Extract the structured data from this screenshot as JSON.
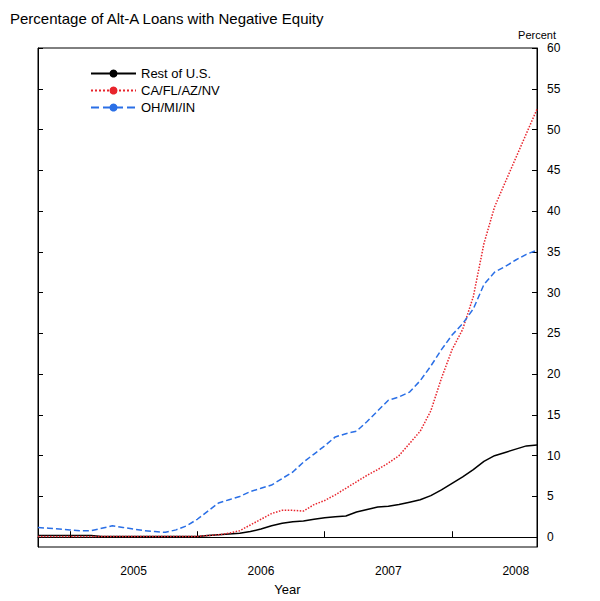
{
  "chart_data": {
    "type": "line",
    "title": "Percentage of Alt-A Loans with Negative Equity",
    "x_label": "Year",
    "y_label": "Percent",
    "categories": [
      null,
      null,
      null,
      null,
      null,
      null,
      null,
      null,
      null,
      "2005",
      null,
      null,
      null,
      null,
      null,
      null,
      null,
      null,
      null,
      null,
      null,
      "2006",
      null,
      null,
      null,
      null,
      null,
      null,
      null,
      null,
      null,
      null,
      null,
      "2007",
      null,
      null,
      null,
      null,
      null,
      null,
      null,
      null,
      null,
      null,
      null,
      "2008",
      null,
      null
    ],
    "series": [
      {
        "name": "Rest of U.S.",
        "color": "#000000",
        "line_style": "solid",
        "values": [
          0.2,
          0.2,
          0.2,
          0.2,
          0.2,
          0.2,
          0.1,
          0.1,
          0.1,
          0.1,
          0.1,
          0.1,
          0.1,
          0.1,
          0.1,
          0.1,
          0.2,
          0.3,
          0.4,
          0.5,
          0.7,
          1.0,
          1.4,
          1.7,
          1.9,
          2.0,
          2.2,
          2.4,
          2.5,
          2.6,
          3.1,
          3.4,
          3.7,
          3.8,
          4.0,
          4.3,
          4.6,
          5.1,
          5.8,
          6.6,
          7.4,
          8.3,
          9.3,
          10.0,
          10.4,
          10.8,
          11.2,
          11.3
        ]
      },
      {
        "name": "CA/FL/AZ/NV",
        "color": "#e8242c",
        "line_style": "dotted",
        "values": [
          0.1,
          0.1,
          0.1,
          0.1,
          0.1,
          0.1,
          0.1,
          0.1,
          0.1,
          0.1,
          0.1,
          0.1,
          0.1,
          0.1,
          0.1,
          0.1,
          0.2,
          0.3,
          0.5,
          0.8,
          1.5,
          2.2,
          2.9,
          3.3,
          3.3,
          3.2,
          4.0,
          4.5,
          5.2,
          6.0,
          6.8,
          7.6,
          8.3,
          9.1,
          10.0,
          11.5,
          13.0,
          15.5,
          19.5,
          23.0,
          25.5,
          29.5,
          36.0,
          40.5,
          43.5,
          46.5,
          49.5,
          52.5
        ]
      },
      {
        "name": "OH/MI/IN",
        "color": "#2a6fe6",
        "line_style": "dashed",
        "values": [
          1.2,
          1.1,
          1.0,
          0.9,
          0.8,
          0.8,
          1.1,
          1.4,
          1.2,
          1.0,
          0.8,
          0.7,
          0.6,
          0.9,
          1.4,
          2.2,
          3.2,
          4.2,
          4.6,
          5.0,
          5.6,
          6.0,
          6.4,
          7.2,
          8.0,
          9.2,
          10.2,
          11.2,
          12.3,
          12.7,
          13.0,
          14.2,
          15.5,
          16.8,
          17.2,
          17.8,
          19.2,
          21.0,
          23.0,
          24.8,
          26.2,
          28.0,
          31.0,
          32.5,
          33.2,
          34.0,
          34.7,
          35.2
        ]
      }
    ],
    "ylim": [
      -1.2,
      60
    ],
    "yticks": [
      0,
      5,
      10,
      15,
      20,
      25,
      30,
      35,
      40,
      45,
      50,
      55,
      60
    ],
    "grid": false,
    "legend": "upper left"
  }
}
